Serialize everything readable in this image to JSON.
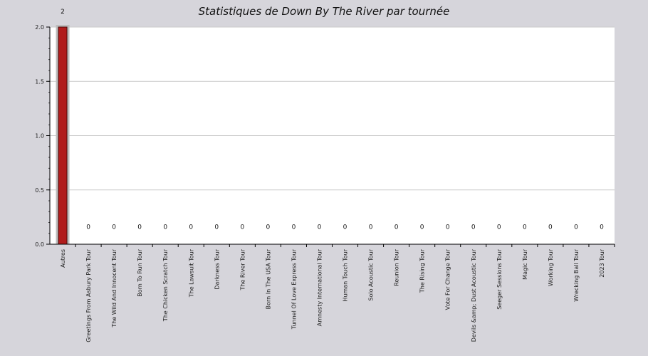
{
  "chart_data": {
    "type": "bar",
    "title": "Statistiques de Down By The River par tournée",
    "xlabel": "",
    "ylabel": "",
    "ylim": [
      0,
      2
    ],
    "yticks": [
      "0.0",
      "0.5",
      "1.0",
      "1.5",
      "2.0"
    ],
    "grid": true,
    "legend": "none",
    "bar_color": "#b01c1c",
    "categories": [
      "Autres",
      "Greetings From Asbury Park Tour",
      "The Wild And Innocent Tour",
      "Born To Run Tour",
      "The Chicken Scratch Tour",
      "The Lawsuit Tour",
      "Darkness Tour",
      "The River Tour",
      "Born In The USA Tour",
      "Tunnel Of Love Express Tour",
      "Amnesty International Tour",
      "Human Touch Tour",
      "Solo Acoustic Tour",
      "Reunion Tour",
      "The Rising Tour",
      "Vote For Change Tour",
      "Devils &amp; Dust Acoustic Tour",
      "Seeger Sessions Tour",
      "Magic Tour",
      "Working Tour",
      "Wrecking Ball Tour",
      "2023 Tour"
    ],
    "values": [
      2,
      0,
      0,
      0,
      0,
      0,
      0,
      0,
      0,
      0,
      0,
      0,
      0,
      0,
      0,
      0,
      0,
      0,
      0,
      0,
      0,
      0
    ]
  }
}
